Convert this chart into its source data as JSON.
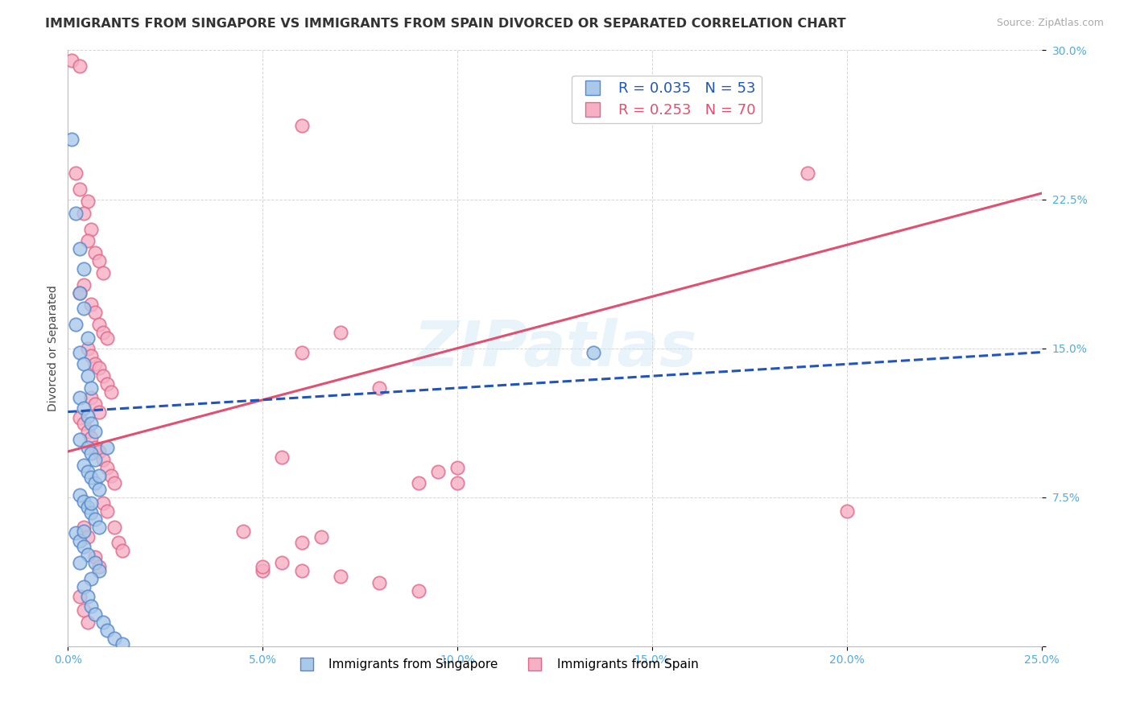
{
  "title": "IMMIGRANTS FROM SINGAPORE VS IMMIGRANTS FROM SPAIN DIVORCED OR SEPARATED CORRELATION CHART",
  "source": "Source: ZipAtlas.com",
  "ylabel": "Divorced or Separated",
  "xlim": [
    0.0,
    0.25
  ],
  "ylim": [
    0.0,
    0.3
  ],
  "xticks": [
    0.0,
    0.05,
    0.1,
    0.15,
    0.2,
    0.25
  ],
  "yticks": [
    0.0,
    0.075,
    0.15,
    0.225,
    0.3
  ],
  "xtick_labels": [
    "0.0%",
    "5.0%",
    "10.0%",
    "15.0%",
    "20.0%",
    "25.0%"
  ],
  "ytick_labels": [
    "",
    "7.5%",
    "15.0%",
    "22.5%",
    "30.0%"
  ],
  "singapore_color": "#aac8e8",
  "spain_color": "#f5b0c5",
  "singapore_edge": "#5588cc",
  "spain_edge": "#e06888",
  "singapore_trend_color": "#2255bb",
  "spain_trend_color": "#e05070",
  "watermark": "ZIPatlas",
  "title_fontsize": 11.5,
  "tick_fontsize": 10,
  "background_color": "#ffffff",
  "grid_color": "#cccccc",
  "singapore_points": [
    [
      0.001,
      0.255
    ],
    [
      0.002,
      0.218
    ],
    [
      0.003,
      0.2
    ],
    [
      0.004,
      0.19
    ],
    [
      0.003,
      0.178
    ],
    [
      0.004,
      0.17
    ],
    [
      0.002,
      0.162
    ],
    [
      0.005,
      0.155
    ],
    [
      0.003,
      0.148
    ],
    [
      0.004,
      0.142
    ],
    [
      0.005,
      0.136
    ],
    [
      0.006,
      0.13
    ],
    [
      0.003,
      0.125
    ],
    [
      0.004,
      0.12
    ],
    [
      0.005,
      0.116
    ],
    [
      0.006,
      0.112
    ],
    [
      0.007,
      0.108
    ],
    [
      0.003,
      0.104
    ],
    [
      0.005,
      0.1
    ],
    [
      0.006,
      0.097
    ],
    [
      0.007,
      0.094
    ],
    [
      0.004,
      0.091
    ],
    [
      0.005,
      0.088
    ],
    [
      0.006,
      0.085
    ],
    [
      0.007,
      0.082
    ],
    [
      0.008,
      0.079
    ],
    [
      0.003,
      0.076
    ],
    [
      0.004,
      0.073
    ],
    [
      0.005,
      0.07
    ],
    [
      0.006,
      0.067
    ],
    [
      0.007,
      0.064
    ],
    [
      0.008,
      0.06
    ],
    [
      0.002,
      0.057
    ],
    [
      0.003,
      0.053
    ],
    [
      0.004,
      0.05
    ],
    [
      0.005,
      0.046
    ],
    [
      0.007,
      0.042
    ],
    [
      0.008,
      0.038
    ],
    [
      0.006,
      0.034
    ],
    [
      0.004,
      0.03
    ],
    [
      0.005,
      0.025
    ],
    [
      0.006,
      0.02
    ],
    [
      0.007,
      0.016
    ],
    [
      0.009,
      0.012
    ],
    [
      0.01,
      0.008
    ],
    [
      0.012,
      0.004
    ],
    [
      0.014,
      0.001
    ],
    [
      0.003,
      0.042
    ],
    [
      0.004,
      0.058
    ],
    [
      0.006,
      0.072
    ],
    [
      0.008,
      0.086
    ],
    [
      0.01,
      0.1
    ],
    [
      0.135,
      0.148
    ]
  ],
  "spain_points": [
    [
      0.001,
      0.295
    ],
    [
      0.003,
      0.292
    ],
    [
      0.06,
      0.262
    ],
    [
      0.002,
      0.238
    ],
    [
      0.003,
      0.23
    ],
    [
      0.005,
      0.224
    ],
    [
      0.004,
      0.218
    ],
    [
      0.006,
      0.21
    ],
    [
      0.005,
      0.204
    ],
    [
      0.007,
      0.198
    ],
    [
      0.008,
      0.194
    ],
    [
      0.009,
      0.188
    ],
    [
      0.004,
      0.182
    ],
    [
      0.003,
      0.178
    ],
    [
      0.006,
      0.172
    ],
    [
      0.007,
      0.168
    ],
    [
      0.008,
      0.162
    ],
    [
      0.009,
      0.158
    ],
    [
      0.01,
      0.155
    ],
    [
      0.005,
      0.15
    ],
    [
      0.006,
      0.146
    ],
    [
      0.007,
      0.142
    ],
    [
      0.008,
      0.14
    ],
    [
      0.009,
      0.136
    ],
    [
      0.01,
      0.132
    ],
    [
      0.011,
      0.128
    ],
    [
      0.006,
      0.125
    ],
    [
      0.007,
      0.122
    ],
    [
      0.008,
      0.118
    ],
    [
      0.003,
      0.115
    ],
    [
      0.004,
      0.112
    ],
    [
      0.005,
      0.108
    ],
    [
      0.006,
      0.105
    ],
    [
      0.007,
      0.1
    ],
    [
      0.008,
      0.098
    ],
    [
      0.009,
      0.094
    ],
    [
      0.01,
      0.09
    ],
    [
      0.011,
      0.086
    ],
    [
      0.012,
      0.082
    ],
    [
      0.06,
      0.148
    ],
    [
      0.07,
      0.158
    ],
    [
      0.08,
      0.13
    ],
    [
      0.19,
      0.238
    ],
    [
      0.09,
      0.082
    ],
    [
      0.095,
      0.088
    ],
    [
      0.055,
      0.095
    ],
    [
      0.1,
      0.09
    ],
    [
      0.004,
      0.06
    ],
    [
      0.005,
      0.055
    ],
    [
      0.007,
      0.045
    ],
    [
      0.008,
      0.04
    ],
    [
      0.05,
      0.038
    ],
    [
      0.06,
      0.052
    ],
    [
      0.003,
      0.025
    ],
    [
      0.004,
      0.018
    ],
    [
      0.005,
      0.012
    ],
    [
      0.045,
      0.058
    ],
    [
      0.009,
      0.072
    ],
    [
      0.01,
      0.068
    ],
    [
      0.012,
      0.06
    ],
    [
      0.013,
      0.052
    ],
    [
      0.014,
      0.048
    ],
    [
      0.1,
      0.082
    ],
    [
      0.2,
      0.068
    ],
    [
      0.07,
      0.035
    ],
    [
      0.08,
      0.032
    ],
    [
      0.09,
      0.028
    ],
    [
      0.06,
      0.038
    ],
    [
      0.05,
      0.04
    ],
    [
      0.055,
      0.042
    ],
    [
      0.065,
      0.055
    ]
  ],
  "sg_trend_x": [
    0.0,
    0.25
  ],
  "sg_trend_y": [
    0.118,
    0.148
  ],
  "sp_trend_x": [
    0.0,
    0.25
  ],
  "sp_trend_y": [
    0.098,
    0.228
  ]
}
